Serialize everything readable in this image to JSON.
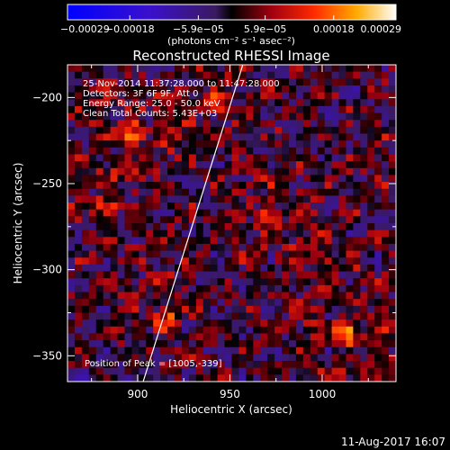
{
  "chart_data": {
    "type": "heatmap",
    "title": "Reconstructed RHESSI Image",
    "xlabel": "Heliocentric X (arcsec)",
    "ylabel": "Heliocentric Y (arcsec)",
    "xlim": [
      862,
      1040
    ],
    "ylim": [
      -365,
      -181
    ],
    "xticks": [
      900,
      950,
      1000
    ],
    "xtick_labels": [
      "900",
      "950",
      "1000"
    ],
    "yticks": [
      -200,
      -250,
      -300,
      -350
    ],
    "ytick_labels": [
      "−200",
      "−250",
      "−300",
      "−350"
    ],
    "colorbar": {
      "label": "(photons cm⁻² s⁻¹ asec⁻²)",
      "range": [
        -0.00029,
        0.00029
      ],
      "ticks": [
        -0.00029,
        -0.00018,
        -5.9e-05,
        5.9e-05,
        0.00018,
        0.00029
      ],
      "tick_labels": [
        "−0.00029",
        "−0.00018",
        "−5.9e−05",
        "5.9e−05",
        "0.00018",
        "0.00029"
      ]
    },
    "annotations": {
      "time": "25-Nov-2014 11:37:28.000 to 11:47:28.000",
      "detectors": "Detectors: 3F 6F 9F, Att 0",
      "energy": "Energy Range: 25.0 - 50.0 keV",
      "method": "Clean   Total Counts: 5.43E+03",
      "peak": "Position of Peak = [1005,-339]"
    },
    "limb_line": {
      "x": [
        903,
        957
      ],
      "y": [
        -365,
        -181
      ]
    },
    "peak_position": [
      1005,
      -339
    ],
    "grid": false,
    "legend": "none"
  },
  "footer_timestamp": "11-Aug-2017 16:07"
}
